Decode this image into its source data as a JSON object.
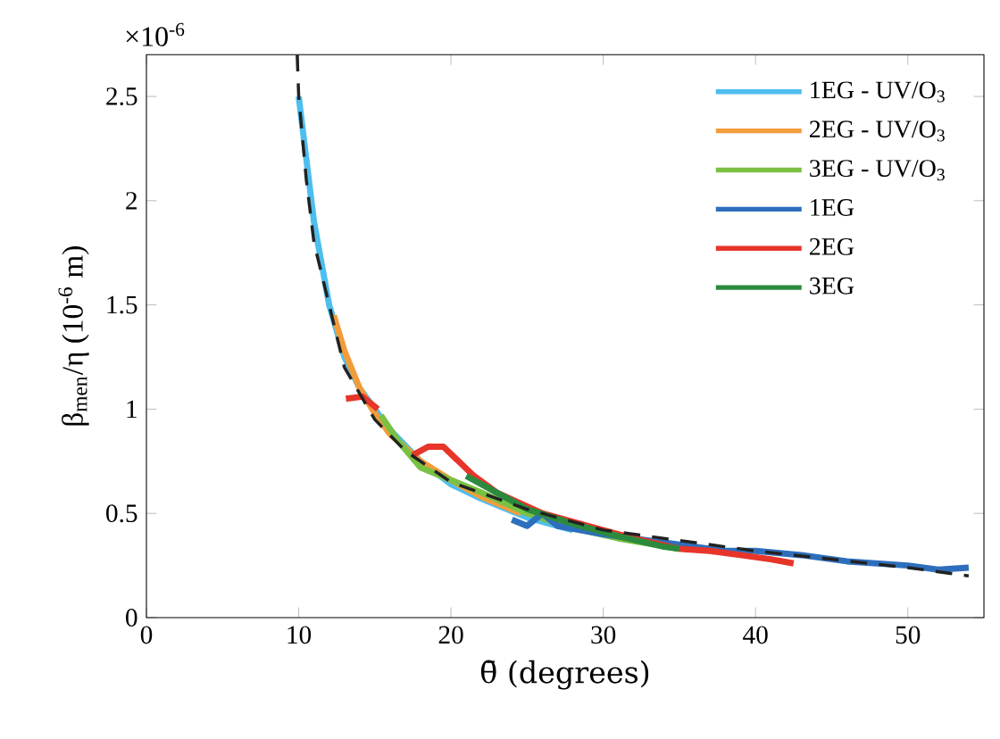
{
  "chart_data": {
    "type": "line",
    "xlabel": "θ̄ (degrees)",
    "ylabel": "β$_{men}$/η (10$^{-6}$ m)",
    "annotations": [
      "×10$^{-6}$"
    ],
    "xlim": [
      0,
      55
    ],
    "ylim": [
      0,
      2.7
    ],
    "xticks": [
      0,
      10,
      20,
      30,
      40,
      50
    ],
    "yticks": [
      0,
      0.5,
      1,
      1.5,
      2,
      2.5
    ],
    "legend": "top right",
    "grid": false,
    "marker": "none",
    "series": [
      {
        "name": "1EG - UV/O$_{3}$",
        "color": "#4dbeee",
        "x": [
          10,
          10.5,
          11,
          11.5,
          12,
          13,
          14,
          16,
          18,
          20,
          22,
          25,
          28
        ],
        "values": [
          2.5,
          2.2,
          1.9,
          1.7,
          1.5,
          1.25,
          1.1,
          0.9,
          0.75,
          0.64,
          0.57,
          0.48,
          0.42
        ]
      },
      {
        "name": "2EG - UV/O$_{3}$",
        "color": "#f39c3b",
        "x": [
          12.3,
          13,
          14,
          15,
          16,
          18,
          20,
          22,
          24.6
        ],
        "values": [
          1.45,
          1.28,
          1.1,
          0.98,
          0.88,
          0.75,
          0.66,
          0.58,
          0.5
        ]
      },
      {
        "name": "3EG - UV/O$_{3}$",
        "color": "#7ac143",
        "x": [
          15.4,
          16.5,
          18,
          20,
          22,
          25,
          28,
          31,
          35
        ],
        "values": [
          0.97,
          0.85,
          0.72,
          0.66,
          0.6,
          0.5,
          0.43,
          0.38,
          0.33
        ]
      },
      {
        "name": "1EG",
        "color": "#2e6fbd",
        "x": [
          24,
          25,
          26,
          27,
          30,
          33,
          35,
          38,
          40,
          43,
          46,
          50,
          52,
          54
        ],
        "values": [
          0.47,
          0.44,
          0.5,
          0.44,
          0.4,
          0.37,
          0.35,
          0.32,
          0.32,
          0.3,
          0.27,
          0.25,
          0.23,
          0.24
        ]
      },
      {
        "name": "2EG",
        "color": "#e8352a",
        "x": [
          13.1,
          14.2,
          15.2,
          16.5,
          17.5,
          18.5,
          19.5,
          20.5,
          21.5,
          23,
          26,
          29,
          32,
          35,
          37,
          39,
          41,
          42.5
        ],
        "values": [
          1.05,
          1.06,
          1.0,
          null,
          0.78,
          0.82,
          0.82,
          0.75,
          0.68,
          0.6,
          0.5,
          0.44,
          0.38,
          0.33,
          0.32,
          0.3,
          0.28,
          0.26
        ]
      },
      {
        "name": "3EG",
        "color": "#2b8a3e",
        "x": [
          21,
          23,
          25,
          28,
          31,
          34,
          35
        ],
        "values": [
          0.68,
          0.6,
          0.52,
          0.45,
          0.39,
          0.34,
          0.33
        ]
      },
      {
        "color": "#222222",
        "line_style": "dashed",
        "x": [
          9.9,
          10,
          10.5,
          11,
          12,
          13,
          15,
          17,
          20,
          25,
          30,
          35,
          40,
          45,
          50,
          54
        ],
        "values": [
          2.7,
          2.5,
          2.1,
          1.8,
          1.5,
          1.2,
          0.95,
          0.8,
          0.65,
          0.52,
          0.42,
          0.37,
          0.32,
          0.28,
          0.24,
          0.2
        ]
      }
    ]
  }
}
